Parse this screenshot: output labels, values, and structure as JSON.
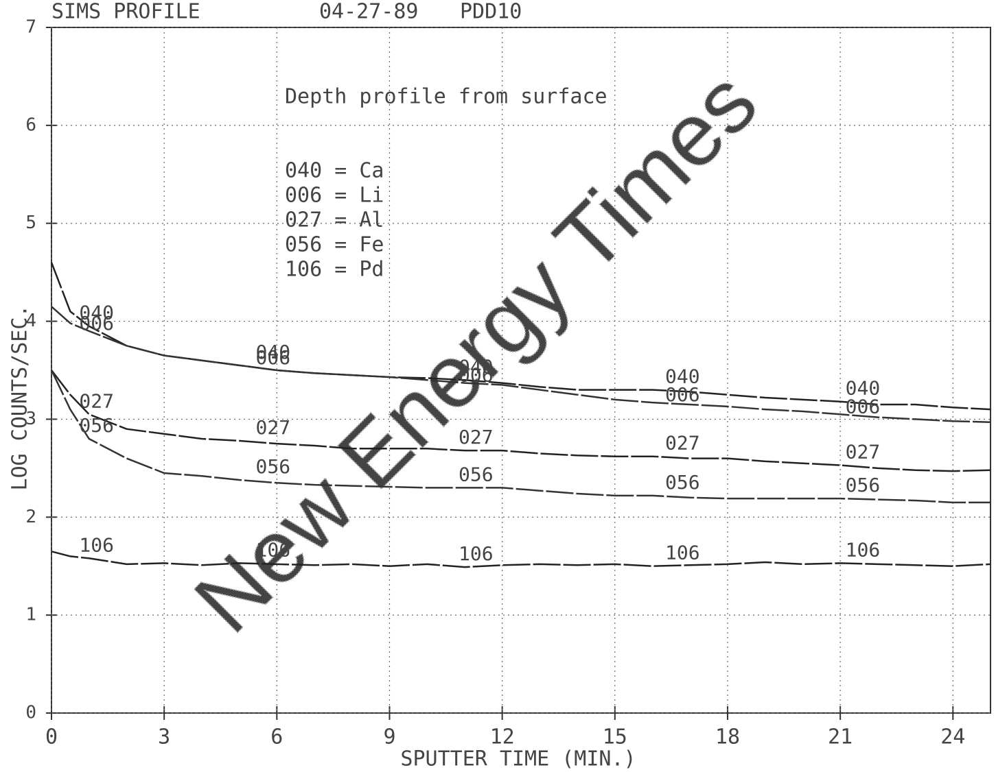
{
  "chart_data": {
    "type": "line",
    "title": "SIMS PROFILE",
    "subtitle": "04-27-89",
    "sample": "PDD10",
    "annotation": "Depth profile from surface",
    "key_lines": [
      "040 = Ca",
      "006 = Li",
      "027 = Al",
      "056 = Fe",
      "106 = Pd"
    ],
    "watermark": "New Energy Times",
    "x_label": "SPUTTER TIME (MIN.)",
    "y_label": "LOG COUNTS/SEC.",
    "x": [
      0,
      0.5,
      1,
      2,
      3,
      4,
      5,
      6,
      7,
      8,
      9,
      10,
      11,
      12,
      13,
      14,
      15,
      16,
      17,
      18,
      19,
      20,
      21,
      22,
      23,
      24,
      25
    ],
    "series": [
      {
        "name": "040",
        "color": "#222222",
        "values": [
          4.6,
          4.1,
          3.95,
          3.75,
          3.65,
          3.6,
          3.55,
          3.5,
          3.47,
          3.45,
          3.43,
          3.42,
          3.4,
          3.37,
          3.33,
          3.3,
          3.3,
          3.3,
          3.28,
          3.25,
          3.22,
          3.2,
          3.18,
          3.15,
          3.15,
          3.12,
          3.1
        ]
      },
      {
        "name": "006",
        "color": "#333333",
        "values": [
          4.15,
          3.98,
          3.9,
          3.75,
          3.65,
          3.6,
          3.55,
          3.5,
          3.47,
          3.45,
          3.43,
          3.4,
          3.37,
          3.35,
          3.3,
          3.25,
          3.2,
          3.17,
          3.15,
          3.13,
          3.1,
          3.08,
          3.05,
          3.02,
          3.0,
          2.98,
          2.97
        ]
      },
      {
        "name": "027",
        "color": "#222222",
        "values": [
          3.5,
          3.25,
          3.05,
          2.9,
          2.85,
          2.8,
          2.78,
          2.75,
          2.73,
          2.7,
          2.7,
          2.7,
          2.68,
          2.68,
          2.65,
          2.63,
          2.62,
          2.62,
          2.6,
          2.6,
          2.57,
          2.55,
          2.53,
          2.5,
          2.48,
          2.47,
          2.48
        ]
      },
      {
        "name": "056",
        "color": "#333333",
        "values": [
          3.5,
          3.1,
          2.8,
          2.6,
          2.45,
          2.42,
          2.38,
          2.35,
          2.33,
          2.32,
          2.31,
          2.3,
          2.3,
          2.3,
          2.27,
          2.24,
          2.22,
          2.22,
          2.2,
          2.19,
          2.19,
          2.19,
          2.19,
          2.18,
          2.17,
          2.15,
          2.15
        ]
      },
      {
        "name": "106",
        "color": "#222222",
        "values": [
          1.65,
          1.6,
          1.58,
          1.52,
          1.53,
          1.51,
          1.53,
          1.52,
          1.51,
          1.52,
          1.5,
          1.52,
          1.49,
          1.51,
          1.52,
          1.51,
          1.52,
          1.5,
          1.51,
          1.52,
          1.54,
          1.52,
          1.53,
          1.52,
          1.51,
          1.5,
          1.52
        ]
      }
    ],
    "xlim": [
      0,
      25
    ],
    "ylim": [
      0,
      7
    ],
    "xticks": [
      0,
      3,
      6,
      9,
      12,
      15,
      18,
      21,
      24
    ],
    "yticks": [
      0,
      1,
      2,
      3,
      4,
      5,
      6,
      7
    ],
    "grid": true
  }
}
